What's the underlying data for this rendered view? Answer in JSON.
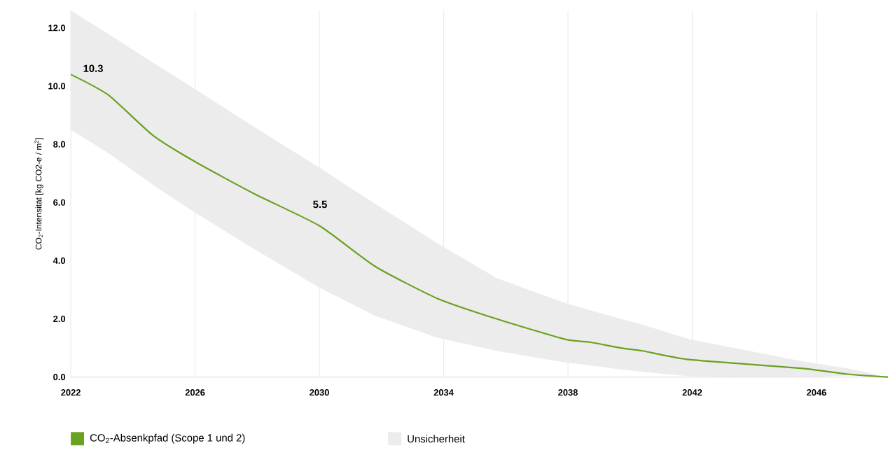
{
  "chart_data": {
    "type": "line",
    "ylabel": "CO$_{2}$-Intensität [kg CO2-e / m$^{2}$]",
    "series": [
      {
        "name": "CO$_{2}$-Absenkpfad (Scope 1 und 2)",
        "color": "#6aa121",
        "x": [
          2022,
          2023.2,
          2024.65,
          2026,
          2027.9,
          2030,
          2031.8,
          2033.8,
          2035.7,
          2037.9,
          2038.7,
          2039.7,
          2040.4,
          2041.9,
          2045.5,
          2047,
          2048.3
        ],
        "values": [
          10.4,
          9.7,
          8.3,
          7.4,
          6.3,
          5.2,
          3.8,
          2.7,
          2.0,
          1.3,
          1.2,
          1.0,
          0.9,
          0.6,
          0.3,
          0.1,
          0
        ],
        "lower": [
          8.5,
          7.7,
          6.6,
          5.65,
          4.4,
          3.07,
          2.1,
          1.35,
          0.9,
          0.5,
          0.4,
          0.26,
          0.18,
          0.03,
          0,
          0.05,
          0
        ],
        "upper": [
          12.6,
          11.8,
          10.8,
          9.9,
          8.6,
          7.2,
          5.95,
          4.6,
          3.4,
          2.55,
          2.3,
          2.0,
          1.8,
          1.3,
          0.55,
          0.3,
          0
        ]
      }
    ],
    "xlim": [
      2022,
      2048.3
    ],
    "ylim": [
      0,
      12.6
    ],
    "xticks": [
      2022,
      2026,
      2030,
      2034,
      2038,
      2042,
      2046
    ],
    "yticks": [
      {
        "value": 0,
        "label": "0.0"
      },
      {
        "value": 2,
        "label": "2.0"
      },
      {
        "value": 4,
        "label": "4.0"
      },
      {
        "value": 6,
        "label": "6.0"
      },
      {
        "value": 8,
        "label": "8.0"
      },
      {
        "value": 10,
        "label": "10.0"
      },
      {
        "value": 12,
        "label": "12.0"
      }
    ],
    "annotations": [
      {
        "text": "10.3",
        "x": 2022,
        "y": 10.3
      },
      "5.5",
      "Unsicherheit"
    ],
    "grid": "x",
    "legend": "bottom",
    "marker": "none",
    "line_style": "solid"
  }
}
